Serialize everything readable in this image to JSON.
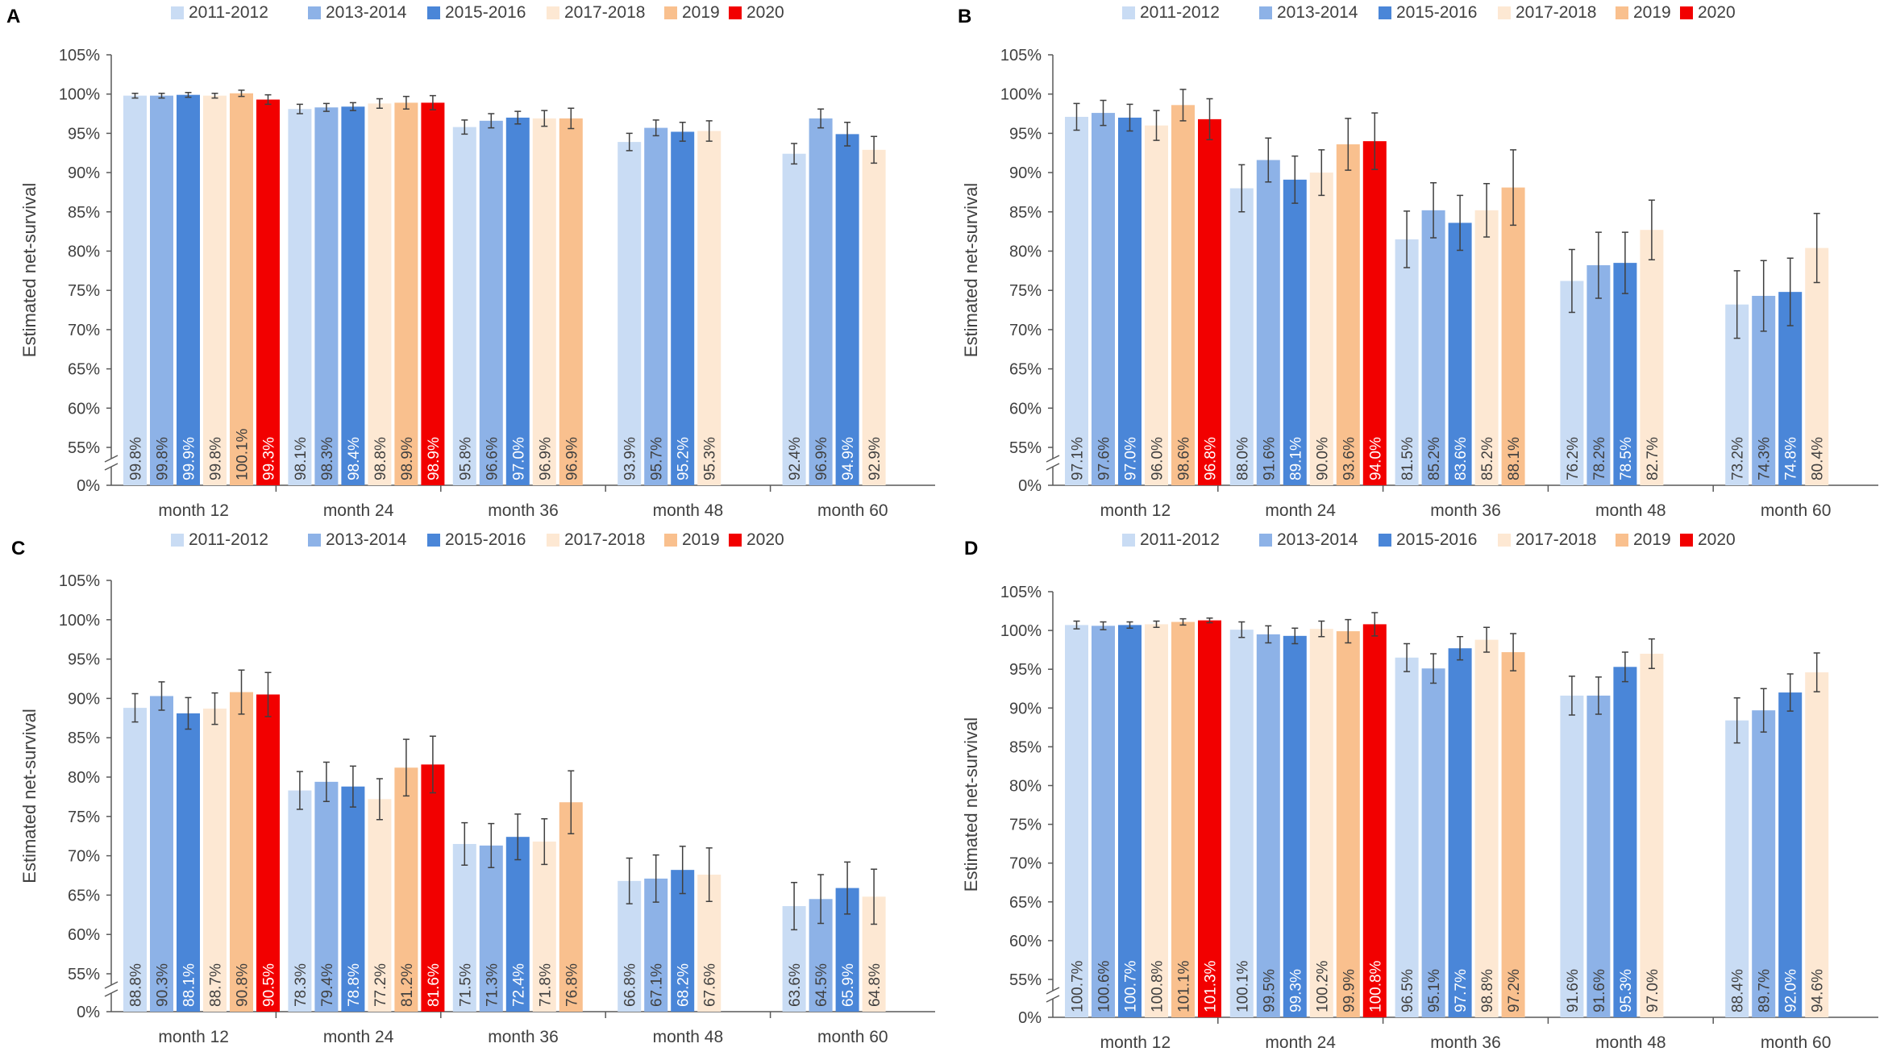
{
  "colors": {
    "series": [
      "#c9dcf4",
      "#8db2e7",
      "#4a86d8",
      "#fde8d3",
      "#f9c08e",
      "#f20000"
    ],
    "axis": "#595959",
    "error_bar": "#404040",
    "label_dark": "#404040",
    "label_light": "#ffffff"
  },
  "chart_data": [
    {
      "type": "bar",
      "panel": "A",
      "ylabel": "Estimated net-survival",
      "xlabel": "",
      "ylim": [
        55,
        105
      ],
      "y_ticks": [
        "0%",
        "55%",
        "60%",
        "65%",
        "70%",
        "75%",
        "80%",
        "85%",
        "90%",
        "95%",
        "100%",
        "105%"
      ],
      "axis_break": true,
      "legend_position": "top",
      "categories": [
        "month 12",
        "month 24",
        "month 36",
        "month 48",
        "month 60"
      ],
      "series": [
        {
          "name": "2011-2012",
          "values": [
            99.8,
            98.1,
            95.8,
            93.9,
            92.4
          ],
          "labels": [
            "99.8%",
            "98.1%",
            "95.8%",
            "93.9%",
            "92.4%"
          ],
          "err": [
            0.3,
            0.6,
            0.9,
            1.1,
            1.3
          ]
        },
        {
          "name": "2013-2014",
          "values": [
            99.8,
            98.3,
            96.6,
            95.7,
            96.9
          ],
          "labels": [
            "99.8%",
            "98.3%",
            "96.6%",
            "95.7%",
            "96.9%"
          ],
          "err": [
            0.3,
            0.5,
            0.9,
            1.0,
            1.2
          ]
        },
        {
          "name": "2015-2016",
          "values": [
            99.9,
            98.4,
            97.0,
            95.2,
            94.9
          ],
          "labels": [
            "99.9%",
            "98.4%",
            "97.0%",
            "95.2%",
            "94.9%"
          ],
          "err": [
            0.3,
            0.5,
            0.8,
            1.2,
            1.5
          ]
        },
        {
          "name": "2017-2018",
          "values": [
            99.8,
            98.8,
            96.9,
            95.3,
            92.9
          ],
          "labels": [
            "99.8%",
            "98.8%",
            "96.9%",
            "95.3%",
            "92.9%"
          ],
          "err": [
            0.3,
            0.6,
            1.0,
            1.3,
            1.7
          ]
        },
        {
          "name": "2019",
          "values": [
            100.1,
            98.9,
            96.9,
            null,
            null
          ],
          "labels": [
            "100.1%",
            "98.9%",
            "96.9%",
            "",
            ""
          ],
          "err": [
            0.4,
            0.8,
            1.3,
            0,
            0
          ]
        },
        {
          "name": "2020",
          "values": [
            99.3,
            98.9,
            null,
            null,
            null
          ],
          "labels": [
            "99.3%",
            "98.9%",
            "",
            "",
            ""
          ],
          "err": [
            0.6,
            0.9,
            0,
            0,
            0
          ]
        }
      ]
    },
    {
      "type": "bar",
      "panel": "B",
      "ylabel": "Estimated net-survival",
      "xlabel": "",
      "ylim": [
        55,
        105
      ],
      "y_ticks": [
        "0%",
        "55%",
        "60%",
        "65%",
        "70%",
        "75%",
        "80%",
        "85%",
        "90%",
        "95%",
        "100%",
        "105%"
      ],
      "axis_break": true,
      "legend_position": "top",
      "categories": [
        "month 12",
        "month 24",
        "month 36",
        "month 48",
        "month 60"
      ],
      "series": [
        {
          "name": "2011-2012",
          "values": [
            97.1,
            88.0,
            81.5,
            76.2,
            73.2
          ],
          "labels": [
            "97.1%",
            "88.0%",
            "81.5%",
            "76.2%",
            "73.2%"
          ],
          "err": [
            1.7,
            3.0,
            3.6,
            4.0,
            4.3
          ]
        },
        {
          "name": "2013-2014",
          "values": [
            97.6,
            91.6,
            85.2,
            78.2,
            74.3
          ],
          "labels": [
            "97.6%",
            "91.6%",
            "85.2%",
            "78.2%",
            "74.3%"
          ],
          "err": [
            1.6,
            2.8,
            3.5,
            4.2,
            4.5
          ]
        },
        {
          "name": "2015-2016",
          "values": [
            97.0,
            89.1,
            83.6,
            78.5,
            74.8
          ],
          "labels": [
            "97.0%",
            "89.1%",
            "83.6%",
            "78.5%",
            "74.8%"
          ],
          "err": [
            1.7,
            3.0,
            3.5,
            3.9,
            4.3
          ]
        },
        {
          "name": "2017-2018",
          "values": [
            96.0,
            90.0,
            85.2,
            82.7,
            80.4
          ],
          "labels": [
            "96.0%",
            "90.0%",
            "85.2%",
            "82.7%",
            "80.4%"
          ],
          "err": [
            1.9,
            2.9,
            3.4,
            3.8,
            4.4
          ]
        },
        {
          "name": "2019",
          "values": [
            98.6,
            93.6,
            88.1,
            null,
            null
          ],
          "labels": [
            "98.6%",
            "93.6%",
            "88.1%",
            "",
            ""
          ],
          "err": [
            2.0,
            3.3,
            4.8,
            0,
            0
          ]
        },
        {
          "name": "2020",
          "values": [
            96.8,
            94.0,
            null,
            null,
            null
          ],
          "labels": [
            "96.8%",
            "94.0%",
            "",
            "",
            ""
          ],
          "err": [
            2.6,
            3.6,
            0,
            0,
            0
          ]
        }
      ]
    },
    {
      "type": "bar",
      "panel": "C",
      "ylabel": "Estimated net-survival",
      "xlabel": "",
      "ylim": [
        55,
        105
      ],
      "y_ticks": [
        "0%",
        "55%",
        "60%",
        "65%",
        "70%",
        "75%",
        "80%",
        "85%",
        "90%",
        "95%",
        "100%",
        "105%"
      ],
      "axis_break": true,
      "legend_position": "top",
      "categories": [
        "month 12",
        "month 24",
        "month 36",
        "month 48",
        "month 60"
      ],
      "series": [
        {
          "name": "2011-2012",
          "values": [
            88.8,
            78.3,
            71.5,
            66.8,
            63.6
          ],
          "labels": [
            "88.8%",
            "78.3%",
            "71.5%",
            "66.8%",
            "63.6%"
          ],
          "err": [
            1.8,
            2.4,
            2.7,
            2.9,
            3.0
          ]
        },
        {
          "name": "2013-2014",
          "values": [
            90.3,
            79.4,
            71.3,
            67.1,
            64.5
          ],
          "labels": [
            "90.3%",
            "79.4%",
            "71.3%",
            "67.1%",
            "64.5%"
          ],
          "err": [
            1.8,
            2.5,
            2.8,
            3.0,
            3.1
          ]
        },
        {
          "name": "2015-2016",
          "values": [
            88.1,
            78.8,
            72.4,
            68.2,
            65.9
          ],
          "labels": [
            "88.1%",
            "78.8%",
            "72.4%",
            "68.2%",
            "65.9%"
          ],
          "err": [
            2.0,
            2.6,
            2.9,
            3.0,
            3.3
          ]
        },
        {
          "name": "2017-2018",
          "values": [
            88.7,
            77.2,
            71.8,
            67.6,
            64.8
          ],
          "labels": [
            "88.7%",
            "77.2%",
            "71.8%",
            "67.6%",
            "64.8%"
          ],
          "err": [
            2.0,
            2.6,
            2.9,
            3.4,
            3.5
          ]
        },
        {
          "name": "2019",
          "values": [
            90.8,
            81.2,
            76.8,
            null,
            null
          ],
          "labels": [
            "90.8%",
            "81.2%",
            "76.8%",
            "",
            ""
          ],
          "err": [
            2.8,
            3.6,
            4.0,
            0,
            0
          ]
        },
        {
          "name": "2020",
          "values": [
            90.5,
            81.6,
            null,
            null,
            null
          ],
          "labels": [
            "90.5%",
            "81.6%",
            "",
            "",
            ""
          ],
          "err": [
            2.8,
            3.6,
            0,
            0,
            0
          ]
        }
      ]
    },
    {
      "type": "bar",
      "panel": "D",
      "ylabel": "Estimated net-survival",
      "xlabel": "",
      "ylim": [
        55,
        105
      ],
      "y_ticks": [
        "0%",
        "55%",
        "60%",
        "65%",
        "70%",
        "75%",
        "80%",
        "85%",
        "90%",
        "95%",
        "100%",
        "105%"
      ],
      "axis_break": true,
      "legend_position": "top",
      "categories": [
        "month 12",
        "month 24",
        "month 36",
        "month 48",
        "month 60"
      ],
      "series": [
        {
          "name": "2011-2012",
          "values": [
            100.7,
            100.1,
            96.5,
            91.6,
            88.4
          ],
          "labels": [
            "100.7%",
            "100.1%",
            "96.5%",
            "91.6%",
            "88.4%"
          ],
          "err": [
            0.5,
            1.0,
            1.8,
            2.5,
            2.9
          ]
        },
        {
          "name": "2013-2014",
          "values": [
            100.6,
            99.5,
            95.1,
            91.6,
            89.7
          ],
          "labels": [
            "100.6%",
            "99.5%",
            "95.1%",
            "91.6%",
            "89.7%"
          ],
          "err": [
            0.5,
            1.1,
            1.9,
            2.4,
            2.8
          ]
        },
        {
          "name": "2015-2016",
          "values": [
            100.7,
            99.3,
            97.7,
            95.3,
            92.0
          ],
          "labels": [
            "100.7%",
            "99.3%",
            "97.7%",
            "95.3%",
            "92.0%"
          ],
          "err": [
            0.4,
            1.0,
            1.5,
            1.9,
            2.4
          ]
        },
        {
          "name": "2017-2018",
          "values": [
            100.8,
            100.2,
            98.8,
            97.0,
            94.6
          ],
          "labels": [
            "100.8%",
            "100.2%",
            "98.8%",
            "97.0%",
            "94.6%"
          ],
          "err": [
            0.4,
            1.0,
            1.6,
            1.9,
            2.5
          ]
        },
        {
          "name": "2019",
          "values": [
            101.1,
            99.9,
            97.2,
            null,
            null
          ],
          "labels": [
            "101.1%",
            "99.9%",
            "97.2%",
            "",
            ""
          ],
          "err": [
            0.4,
            1.5,
            2.4,
            0,
            0
          ]
        },
        {
          "name": "2020",
          "values": [
            101.3,
            100.8,
            null,
            null,
            null
          ],
          "labels": [
            "101.3%",
            "100.8%",
            "",
            "",
            ""
          ],
          "err": [
            0.3,
            1.5,
            0,
            0,
            0
          ]
        }
      ]
    }
  ]
}
